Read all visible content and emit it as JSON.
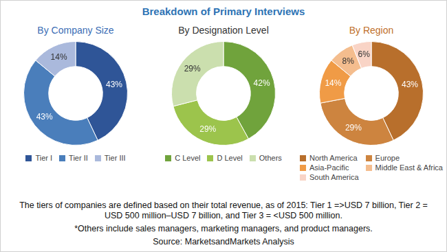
{
  "title": "Breakdown of Primary Interviews",
  "chart_data": [
    {
      "type": "doughnut",
      "title": "By Company Size",
      "categories": [
        "Tier I",
        "Tier II",
        "Tier III"
      ],
      "values": [
        43,
        43,
        14
      ],
      "value_labels": [
        "43%",
        "43%",
        "14%"
      ],
      "colors": [
        "#2f5597",
        "#4a7ebb",
        "#aab9dc"
      ],
      "data_labels": true,
      "legend": "bottom"
    },
    {
      "type": "doughnut",
      "title": "By Designation Level",
      "categories": [
        "C Level",
        "D Level",
        "Others"
      ],
      "values": [
        42,
        29,
        29
      ],
      "value_labels": [
        "42%",
        "29%",
        "29%"
      ],
      "colors": [
        "#70a33c",
        "#9cc44c",
        "#cbdfae"
      ],
      "data_labels": true,
      "legend": "bottom"
    },
    {
      "type": "doughnut",
      "title": "By Region",
      "categories": [
        "North America",
        "Europe",
        "Asia-Pacific",
        "Middle East & Africa",
        "South America"
      ],
      "values": [
        43,
        29,
        14,
        8,
        6
      ],
      "value_labels": [
        "43%",
        "29%",
        "14%",
        "8%",
        "6%"
      ],
      "colors": [
        "#b86f2c",
        "#cd843f",
        "#f09b46",
        "#f4bd8e",
        "#f9d4c6"
      ],
      "data_labels": true,
      "legend": "bottom"
    }
  ],
  "notes": [
    "The tiers of companies are defined based on their total revenue, as of 2015: Tier 1 =>USD 7 billion, Tier 2 = USD 500 million–USD 7 billion, and Tier 3 = <USD 500 million.",
    "*Others include sales managers, marketing managers, and product managers."
  ],
  "source": "Source: MarketsandMarkets Analysis"
}
